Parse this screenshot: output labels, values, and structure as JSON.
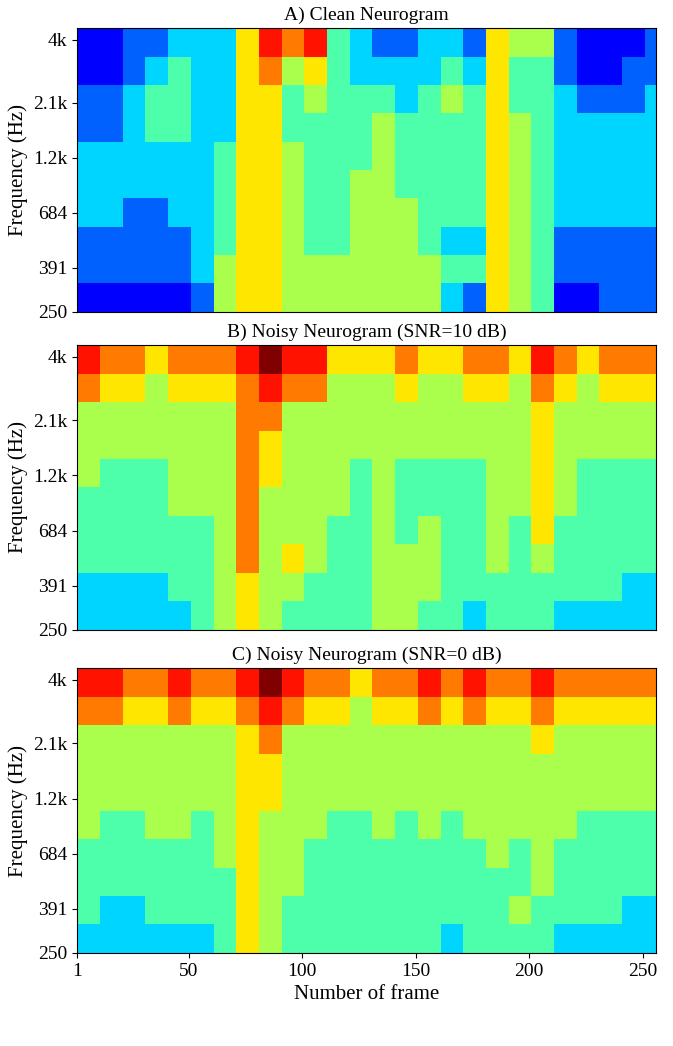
{
  "chart_data": [
    {
      "type": "heatmap",
      "title": "A) Clean Neurogram",
      "ylabel": "Frequency (Hz)",
      "color": "jet",
      "log": "y",
      "tick_labels": "y",
      "xlim": [
        1,
        256
      ],
      "ylim": [
        250,
        4500
      ],
      "yticks": [
        250,
        391,
        684,
        {
          "value": 1200,
          "label": "1.2k"
        },
        {
          "value": 2100,
          "label": "2.1k"
        },
        {
          "value": 4000,
          "label": "4k"
        }
      ],
      "clim": [
        0,
        9
      ],
      "x": [
        1,
        11,
        21,
        31,
        41,
        51,
        61,
        71,
        81,
        91,
        101,
        111,
        121,
        131,
        141,
        151,
        161,
        171,
        181,
        191,
        201,
        211,
        221,
        231,
        241,
        251,
        256
      ],
      "y": [
        250,
        334,
        445,
        595,
        794,
        1060,
        1415,
        1890,
        2520,
        3370,
        4500
      ],
      "cells": [
        [
          1,
          1,
          1,
          1,
          1,
          2,
          5,
          6,
          6,
          5,
          5,
          5,
          5,
          5,
          5,
          5,
          3,
          2,
          6,
          5,
          4,
          1,
          1,
          2,
          2,
          2
        ],
        [
          2,
          2,
          2,
          2,
          2,
          3,
          5,
          6,
          6,
          5,
          5,
          5,
          5,
          5,
          5,
          5,
          4,
          4,
          6,
          5,
          4,
          2,
          2,
          2,
          2,
          2
        ],
        [
          2,
          2,
          2,
          2,
          2,
          3,
          4,
          6,
          6,
          5,
          4,
          4,
          5,
          5,
          5,
          4,
          3,
          3,
          6,
          5,
          4,
          2,
          2,
          2,
          2,
          2
        ],
        [
          3,
          3,
          2,
          2,
          3,
          3,
          4,
          6,
          6,
          5,
          4,
          4,
          5,
          5,
          5,
          4,
          4,
          4,
          6,
          5,
          4,
          3,
          3,
          3,
          3,
          3
        ],
        [
          3,
          3,
          3,
          3,
          3,
          3,
          4,
          6,
          6,
          5,
          4,
          4,
          5,
          5,
          4,
          4,
          4,
          4,
          6,
          5,
          4,
          3,
          3,
          3,
          3,
          3
        ],
        [
          3,
          3,
          3,
          3,
          3,
          3,
          4,
          6,
          6,
          5,
          4,
          4,
          4,
          5,
          4,
          4,
          4,
          4,
          6,
          5,
          4,
          3,
          3,
          3,
          3,
          3
        ],
        [
          2,
          2,
          3,
          4,
          4,
          3,
          3,
          6,
          6,
          4,
          4,
          4,
          4,
          5,
          4,
          4,
          4,
          4,
          6,
          5,
          4,
          3,
          3,
          3,
          3,
          3
        ],
        [
          2,
          2,
          3,
          4,
          4,
          3,
          3,
          6,
          6,
          4,
          5,
          4,
          4,
          4,
          3,
          4,
          5,
          4,
          6,
          4,
          4,
          3,
          2,
          2,
          2,
          3
        ],
        [
          1,
          1,
          2,
          3,
          4,
          3,
          3,
          6,
          7,
          5,
          6,
          4,
          3,
          3,
          3,
          3,
          4,
          3,
          6,
          4,
          4,
          2,
          1,
          1,
          2,
          2
        ],
        [
          1,
          1,
          2,
          2,
          3,
          3,
          3,
          6,
          8,
          7,
          8,
          4,
          3,
          2,
          2,
          3,
          3,
          2,
          6,
          5,
          5,
          2,
          1,
          1,
          1,
          2
        ]
      ]
    },
    {
      "type": "heatmap",
      "title": "B) Noisy Neurogram (SNR=10 dB)",
      "ylabel": "Frequency (Hz)",
      "color": "jet",
      "log": "y",
      "tick_labels": "y",
      "xlim": [
        1,
        256
      ],
      "ylim": [
        250,
        4500
      ],
      "yticks": [
        250,
        391,
        684,
        {
          "value": 1200,
          "label": "1.2k"
        },
        {
          "value": 2100,
          "label": "2.1k"
        },
        {
          "value": 4000,
          "label": "4k"
        }
      ],
      "clim": [
        0,
        9
      ],
      "x": [
        1,
        11,
        21,
        31,
        41,
        51,
        61,
        71,
        81,
        91,
        101,
        111,
        121,
        131,
        141,
        151,
        161,
        171,
        181,
        191,
        201,
        211,
        221,
        231,
        241,
        251,
        256
      ],
      "y": [
        250,
        334,
        445,
        595,
        794,
        1060,
        1415,
        1890,
        2520,
        3370,
        4500
      ],
      "cells": [
        [
          3,
          3,
          3,
          3,
          3,
          4,
          5,
          6,
          5,
          4,
          4,
          4,
          4,
          5,
          5,
          4,
          4,
          3,
          4,
          4,
          4,
          3,
          3,
          3,
          3,
          3
        ],
        [
          3,
          3,
          3,
          3,
          4,
          4,
          5,
          6,
          5,
          5,
          4,
          4,
          4,
          5,
          5,
          5,
          4,
          4,
          4,
          4,
          4,
          4,
          4,
          4,
          3,
          3
        ],
        [
          4,
          4,
          4,
          4,
          4,
          4,
          5,
          7,
          5,
          6,
          5,
          4,
          4,
          5,
          5,
          5,
          4,
          4,
          5,
          4,
          5,
          4,
          4,
          4,
          4,
          4
        ],
        [
          4,
          4,
          4,
          4,
          4,
          4,
          5,
          7,
          5,
          5,
          5,
          4,
          4,
          5,
          4,
          5,
          4,
          4,
          5,
          4,
          6,
          4,
          4,
          4,
          4,
          4
        ],
        [
          4,
          4,
          4,
          4,
          5,
          5,
          5,
          7,
          5,
          5,
          5,
          5,
          4,
          5,
          4,
          4,
          4,
          4,
          5,
          5,
          6,
          5,
          4,
          4,
          4,
          4
        ],
        [
          5,
          4,
          4,
          4,
          5,
          5,
          5,
          7,
          6,
          5,
          5,
          5,
          4,
          5,
          4,
          4,
          4,
          4,
          5,
          5,
          6,
          5,
          4,
          4,
          4,
          4
        ],
        [
          5,
          5,
          5,
          5,
          5,
          5,
          5,
          7,
          6,
          5,
          5,
          5,
          5,
          5,
          5,
          5,
          5,
          5,
          5,
          5,
          6,
          5,
          5,
          5,
          5,
          5
        ],
        [
          5,
          5,
          5,
          5,
          5,
          5,
          5,
          7,
          7,
          5,
          5,
          5,
          5,
          5,
          5,
          5,
          5,
          5,
          5,
          5,
          6,
          5,
          5,
          5,
          5,
          5
        ],
        [
          7,
          6,
          6,
          5,
          6,
          6,
          6,
          7,
          8,
          7,
          7,
          5,
          5,
          5,
          6,
          5,
          5,
          6,
          6,
          5,
          7,
          6,
          5,
          6,
          6,
          6
        ],
        [
          8,
          7,
          7,
          6,
          7,
          7,
          7,
          8,
          9,
          8,
          8,
          6,
          6,
          6,
          7,
          6,
          6,
          7,
          7,
          6,
          8,
          7,
          6,
          7,
          7,
          7
        ]
      ]
    },
    {
      "type": "heatmap",
      "title": "C) Noisy Neurogram (SNR=0 dB)",
      "xlabel": "Number of frame",
      "ylabel": "Frequency (Hz)",
      "color": "jet",
      "log": "y",
      "xlim": [
        1,
        256
      ],
      "ylim": [
        250,
        4500
      ],
      "xticks": [
        1,
        50,
        100,
        150,
        200,
        250
      ],
      "yticks": [
        250,
        391,
        684,
        {
          "value": 1200,
          "label": "1.2k"
        },
        {
          "value": 2100,
          "label": "2.1k"
        },
        {
          "value": 4000,
          "label": "4k"
        }
      ],
      "clim": [
        0,
        9
      ],
      "x": [
        1,
        11,
        21,
        31,
        41,
        51,
        61,
        71,
        81,
        91,
        101,
        111,
        121,
        131,
        141,
        151,
        161,
        171,
        181,
        191,
        201,
        211,
        221,
        231,
        241,
        251,
        256
      ],
      "y": [
        250,
        334,
        445,
        595,
        794,
        1060,
        1415,
        1890,
        2520,
        3370,
        4500
      ],
      "cells": [
        [
          3,
          3,
          3,
          3,
          3,
          3,
          4,
          6,
          5,
          4,
          4,
          4,
          4,
          4,
          4,
          4,
          3,
          4,
          4,
          4,
          4,
          3,
          3,
          3,
          3,
          3
        ],
        [
          4,
          3,
          3,
          4,
          4,
          4,
          4,
          6,
          5,
          4,
          4,
          4,
          4,
          4,
          4,
          4,
          4,
          4,
          4,
          5,
          4,
          4,
          4,
          4,
          3,
          3
        ],
        [
          4,
          4,
          4,
          4,
          4,
          4,
          4,
          6,
          5,
          5,
          4,
          4,
          4,
          4,
          4,
          4,
          4,
          4,
          4,
          4,
          5,
          4,
          4,
          4,
          4,
          4
        ],
        [
          4,
          4,
          4,
          4,
          4,
          4,
          5,
          6,
          5,
          5,
          4,
          4,
          4,
          4,
          4,
          4,
          4,
          4,
          5,
          4,
          5,
          4,
          4,
          4,
          4,
          4
        ],
        [
          5,
          4,
          4,
          5,
          5,
          4,
          5,
          6,
          5,
          5,
          5,
          4,
          4,
          5,
          4,
          5,
          4,
          5,
          5,
          5,
          5,
          5,
          4,
          4,
          4,
          4
        ],
        [
          5,
          5,
          5,
          5,
          5,
          5,
          5,
          6,
          6,
          5,
          5,
          5,
          5,
          5,
          5,
          5,
          5,
          5,
          5,
          5,
          5,
          5,
          5,
          5,
          5,
          5
        ],
        [
          5,
          5,
          5,
          5,
          5,
          5,
          5,
          6,
          6,
          5,
          5,
          5,
          5,
          5,
          5,
          5,
          5,
          5,
          5,
          5,
          5,
          5,
          5,
          5,
          5,
          5
        ],
        [
          5,
          5,
          5,
          5,
          5,
          5,
          5,
          6,
          7,
          5,
          5,
          5,
          5,
          5,
          5,
          5,
          5,
          5,
          5,
          5,
          6,
          5,
          5,
          5,
          5,
          5
        ],
        [
          7,
          7,
          6,
          6,
          7,
          6,
          6,
          7,
          8,
          7,
          6,
          6,
          5,
          6,
          6,
          7,
          6,
          7,
          6,
          6,
          7,
          6,
          6,
          6,
          6,
          6
        ],
        [
          8,
          8,
          7,
          7,
          8,
          7,
          7,
          8,
          9,
          8,
          7,
          7,
          6,
          7,
          7,
          8,
          7,
          8,
          7,
          7,
          8,
          7,
          7,
          7,
          7,
          7
        ]
      ]
    }
  ]
}
